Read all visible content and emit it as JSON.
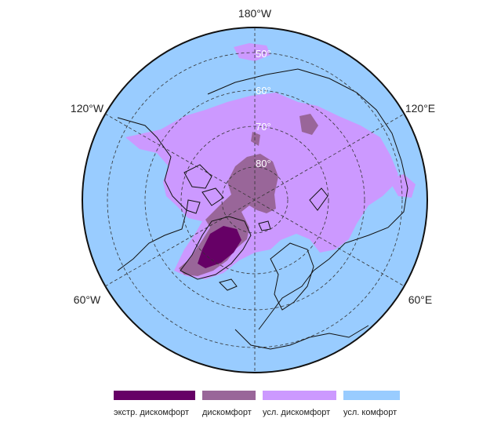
{
  "map": {
    "longitude_labels": {
      "top": "180°W",
      "upper_left": "120°W",
      "upper_right": "120°E",
      "lower_left": "60°W",
      "lower_right": "60°E"
    },
    "latitude_labels": [
      "50°",
      "60°",
      "70°",
      "80°"
    ],
    "projection": "north-polar-stereographic",
    "colors": {
      "ocean": "#99ccff",
      "land_outline": "#111111",
      "graticule": "#333333"
    }
  },
  "legend": {
    "items": [
      {
        "label": "экстр. дискомфорт",
        "color": "#660066"
      },
      {
        "label": "дискомфорт",
        "color": "#996699"
      },
      {
        "label": "усл. дискомфорт",
        "color": "#cc99ff"
      },
      {
        "label": "усл. комфорт",
        "color": "#99ccff"
      }
    ]
  }
}
